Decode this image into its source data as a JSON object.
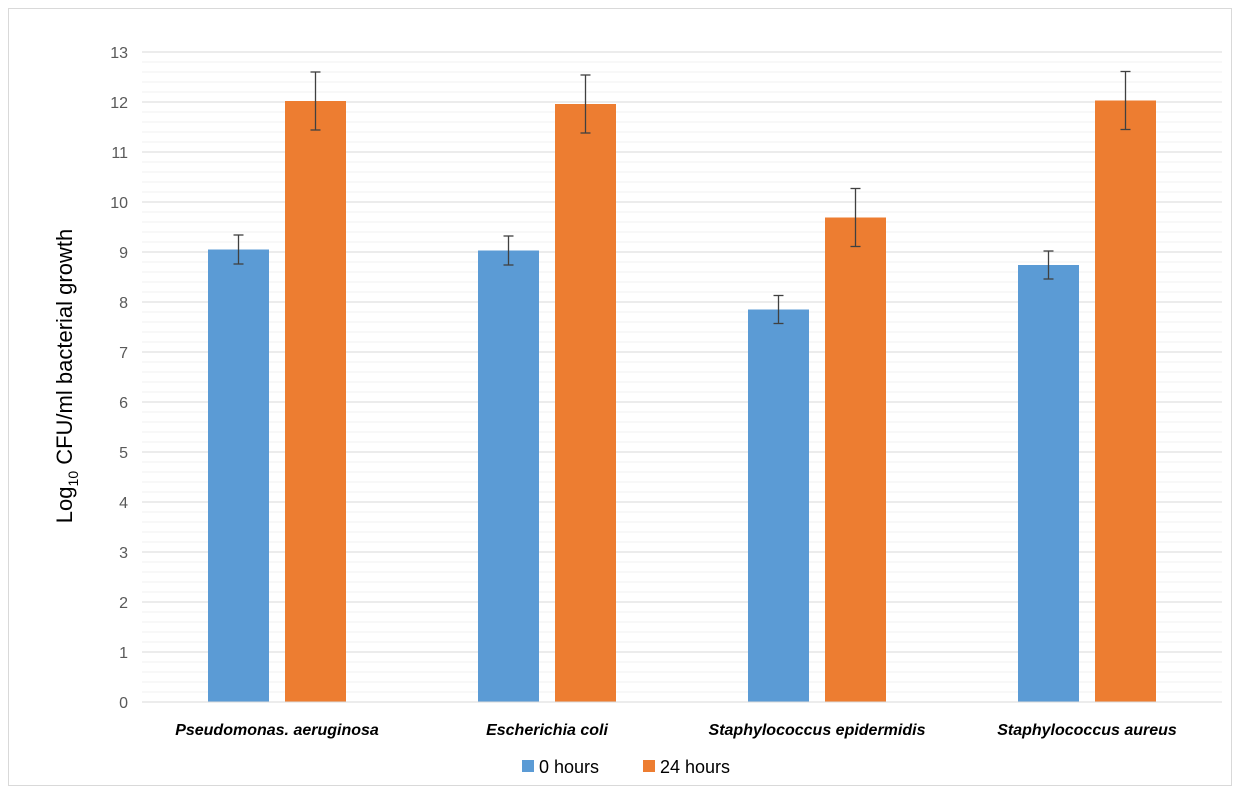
{
  "chart_data": {
    "type": "bar",
    "categories": [
      "Pseudomonas. aeruginosa",
      "Escherichia coli",
      "Staphylococcus epidermidis",
      "Staphylococcus aureus"
    ],
    "series": [
      {
        "name": "0 hours",
        "color": "#5B9BD5",
        "values": [
          9.05,
          9.03,
          7.85,
          8.74
        ],
        "error": [
          0.29,
          0.29,
          0.28,
          0.28
        ]
      },
      {
        "name": "24 hours",
        "color": "#ED7D31",
        "values": [
          12.02,
          11.96,
          9.69,
          12.03
        ],
        "error": [
          0.58,
          0.58,
          0.58,
          0.58
        ]
      }
    ],
    "ylabel_prefix": "Log",
    "ylabel_sub": "10",
    "ylabel_suffix": " CFU/ml bacterial growth",
    "xlabel": "",
    "title": "",
    "ylim": [
      0,
      13
    ],
    "yticks": [
      "0",
      "1",
      "2",
      "3",
      "4",
      "5",
      "6",
      "7",
      "8",
      "9",
      "10",
      "11",
      "12",
      "13"
    ],
    "grid": "major and minor horizontal",
    "legend_position": "bottom"
  }
}
